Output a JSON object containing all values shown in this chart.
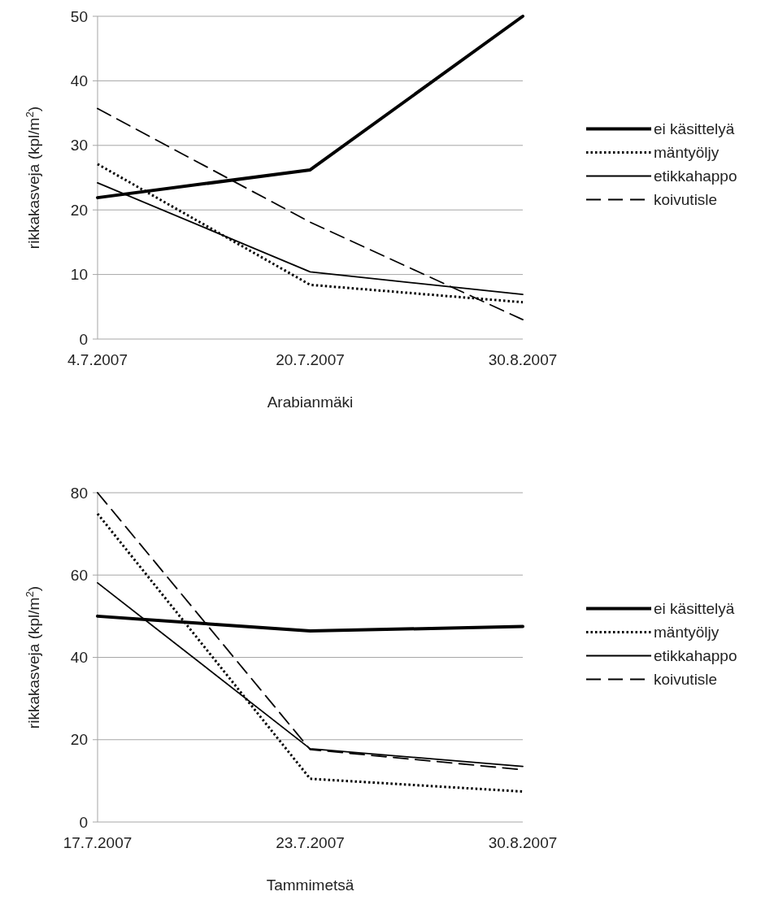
{
  "chart_data": [
    {
      "type": "line",
      "xlabel": "Arabianmäki",
      "ylabel": "rikkakasveja (kpl/m$^{2}$)",
      "categories": [
        "4.7.2007",
        "20.7.2007",
        "30.8.2007"
      ],
      "ylim": [
        0,
        50
      ],
      "yticks": [
        0,
        10,
        20,
        30,
        40,
        50
      ],
      "grid": "y",
      "legend": "right",
      "marker": "none",
      "series": [
        {
          "name": "ei käsittelyä",
          "color": "#000000",
          "line_style": "solid",
          "values": [
            21.9,
            26.2,
            50
          ]
        },
        {
          "name": "mäntyöljy",
          "color": "#000000",
          "line_style": "dotted",
          "values": [
            27.1,
            8.4,
            5.7
          ]
        },
        {
          "name": "etikkahappo",
          "color": "#000000",
          "line_style": "solid",
          "values": [
            24.2,
            10.4,
            6.9
          ]
        },
        {
          "name": "koivutisle",
          "color": "#000000",
          "line_style": "dashed",
          "values": [
            35.7,
            18.1,
            3.0
          ]
        }
      ]
    },
    {
      "type": "line",
      "xlabel": "Tammimetsä",
      "ylabel": "rikkakasveja (kpl/m$^{2}$)",
      "categories": [
        "17.7.2007",
        "23.7.2007",
        "30.8.2007"
      ],
      "ylim": [
        0,
        80
      ],
      "yticks": [
        0,
        20,
        40,
        60,
        80
      ],
      "grid": "y",
      "legend": "right",
      "marker": "none",
      "series": [
        {
          "name": "ei käsittelyä",
          "color": "#000000",
          "line_style": "solid",
          "values": [
            50.0,
            46.4,
            47.5
          ]
        },
        {
          "name": "mäntyöljy",
          "color": "#000000",
          "line_style": "dotted",
          "values": [
            74.9,
            10.5,
            7.4
          ]
        },
        {
          "name": "etikkahappo",
          "color": "#000000",
          "line_style": "solid",
          "values": [
            58.1,
            17.8,
            13.5
          ]
        },
        {
          "name": "koivutisle",
          "color": "#000000",
          "line_style": "dashed",
          "values": [
            80,
            17.6,
            12.7
          ]
        }
      ]
    }
  ]
}
